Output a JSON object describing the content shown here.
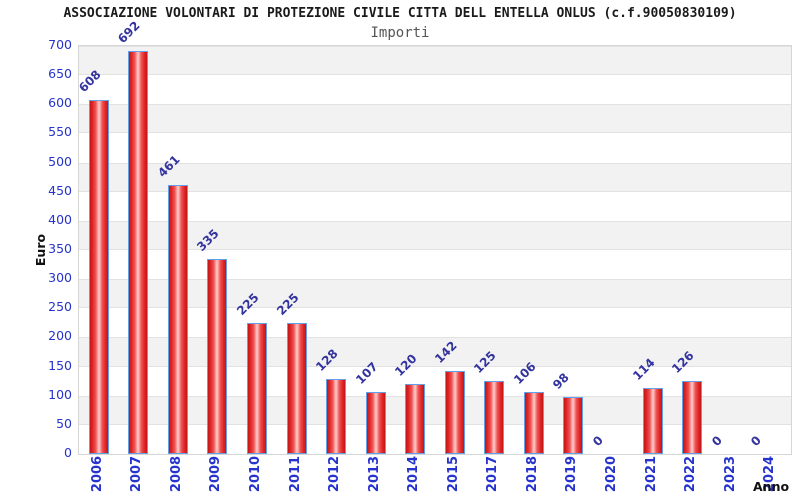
{
  "header": {
    "title": "ASSOCIAZIONE VOLONTARI DI PROTEZIONE CIVILE CITTA DELL ENTELLA ONLUS (c.f.90050830109)",
    "subtitle": "Importi"
  },
  "chart_data": {
    "type": "bar",
    "title": "Importi",
    "xlabel": "Anno",
    "ylabel": "Euro",
    "categories": [
      "2006",
      "2007",
      "2008",
      "2009",
      "2010",
      "2011",
      "2012",
      "2013",
      "2014",
      "2015",
      "2017",
      "2018",
      "2019",
      "2020",
      "2021",
      "2022",
      "2023",
      "2024"
    ],
    "values": [
      608,
      692,
      461,
      335,
      225,
      225,
      128,
      107,
      120,
      142,
      125,
      106,
      98,
      0,
      114,
      126,
      0,
      0
    ],
    "ylim": [
      0,
      700
    ],
    "ytick_step": 50,
    "grid": "alternating-horizontal-bands",
    "legend": "none",
    "value_labels_rotation_deg": -45,
    "xtick_rotation_deg": -90
  },
  "colors": {
    "title": "#1a1a1a",
    "subtitle": "#565656",
    "axis_tick_label": "#2633cc",
    "value_label": "#34349e",
    "bar_main": "#e02525",
    "bar_highlight": "#ffb3b3",
    "bar_edge": "#64a0e8",
    "band_gray": "#f2f2f2",
    "plot_border": "#d6d6d6"
  }
}
